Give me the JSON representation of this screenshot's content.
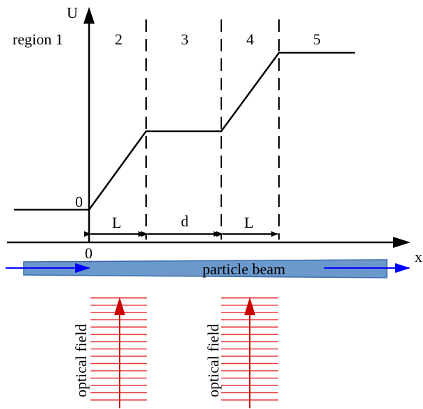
{
  "axes": {
    "y_label": "U",
    "x_label": "x",
    "origin_y_label": "0",
    "origin_x_label": "0"
  },
  "regions": {
    "r1": "region 1",
    "r2": "2",
    "r3": "3",
    "r4": "4",
    "r5": "5"
  },
  "widths": {
    "first": "L",
    "middle": "d",
    "last": "L"
  },
  "beam": {
    "label": "particle beam",
    "fill": "#6b99cc",
    "arrow_color": "#0000ff"
  },
  "optical": {
    "label_left": "optical field",
    "label_right": "optical field",
    "color": "#e8393d",
    "arrow_color": "#cc0000"
  }
}
